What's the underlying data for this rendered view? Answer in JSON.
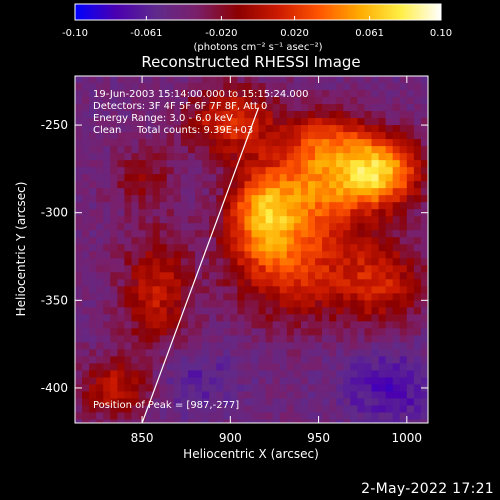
{
  "chart_data": {
    "type": "heatmap",
    "title": "Reconstructed RHESSI Image",
    "xlabel": "Heliocentric X (arcsec)",
    "ylabel": "Heliocentric Y (arcsec)",
    "xlim": [
      812,
      1012
    ],
    "ylim": [
      -420,
      -222
    ],
    "x_ticks": [
      850,
      900,
      950,
      1000
    ],
    "y_ticks": [
      -400,
      -350,
      -300,
      -250
    ],
    "colorbar": {
      "range": [
        -0.1,
        0.1
      ],
      "ticks": [
        "-0.10",
        "-0.061",
        "-0.020",
        "0.020",
        "0.061",
        "0.10"
      ],
      "unit_label": "(photons cm⁻² s⁻¹ asec⁻²)",
      "colors": [
        "#0000ff",
        "#4a00b0",
        "#5f2a8c",
        "#7a1f6a",
        "#8c0000",
        "#cc1a00",
        "#ff5500",
        "#ffaa00",
        "#ffee44",
        "#ffffff"
      ]
    },
    "annotations": [
      "19-Jun-2003 15:14:00.000 to 15:15:24.000",
      "Detectors: 3F 4F 5F 6F 7F 8F, Att 0",
      "Energy Range: 3.0 - 6.0 keV",
      "Clean",
      "Total counts: 9.39E+03",
      "Position of Peak = [987,-277]"
    ],
    "peak": [
      987,
      -277
    ],
    "sources": [
      {
        "x": 985,
        "y": -277,
        "sx": 16,
        "sy": 14,
        "amp": 0.1
      },
      {
        "x": 950,
        "y": -285,
        "sx": 20,
        "sy": 18,
        "amp": 0.07
      },
      {
        "x": 918,
        "y": -300,
        "sx": 14,
        "sy": 18,
        "amp": 0.08
      },
      {
        "x": 900,
        "y": -248,
        "sx": 18,
        "sy": 14,
        "amp": 0.06
      },
      {
        "x": 935,
        "y": -330,
        "sx": 24,
        "sy": 22,
        "amp": 0.06
      },
      {
        "x": 985,
        "y": -340,
        "sx": 18,
        "sy": 18,
        "amp": 0.05
      },
      {
        "x": 858,
        "y": -345,
        "sx": 14,
        "sy": 24,
        "amp": 0.05
      },
      {
        "x": 850,
        "y": -280,
        "sx": 12,
        "sy": 12,
        "amp": 0.03
      },
      {
        "x": 835,
        "y": -400,
        "sx": 14,
        "sy": 12,
        "amp": 0.05
      },
      {
        "x": 955,
        "y": -258,
        "sx": 18,
        "sy": 12,
        "amp": 0.05
      },
      {
        "x": 880,
        "y": -395,
        "sx": 18,
        "sy": 14,
        "amp": -0.02
      },
      {
        "x": 990,
        "y": -400,
        "sx": 20,
        "sy": 16,
        "amp": -0.03
      }
    ],
    "limb_line": [
      [
        850,
        -420
      ],
      [
        916,
        -240
      ]
    ],
    "footer": "2-May-2022 17:21"
  }
}
